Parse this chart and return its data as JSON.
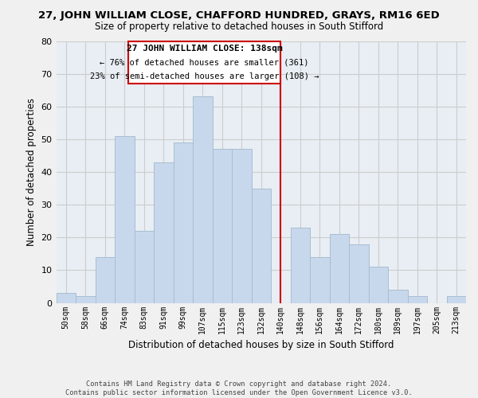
{
  "title": "27, JOHN WILLIAM CLOSE, CHAFFORD HUNDRED, GRAYS, RM16 6ED",
  "subtitle": "Size of property relative to detached houses in South Stifford",
  "xlabel": "Distribution of detached houses by size in South Stifford",
  "ylabel": "Number of detached properties",
  "bin_labels": [
    "50sqm",
    "58sqm",
    "66sqm",
    "74sqm",
    "83sqm",
    "91sqm",
    "99sqm",
    "107sqm",
    "115sqm",
    "123sqm",
    "132sqm",
    "140sqm",
    "148sqm",
    "156sqm",
    "164sqm",
    "172sqm",
    "180sqm",
    "189sqm",
    "197sqm",
    "205sqm",
    "213sqm"
  ],
  "bar_heights": [
    3,
    2,
    14,
    51,
    22,
    43,
    49,
    63,
    47,
    47,
    35,
    0,
    23,
    14,
    21,
    18,
    11,
    4,
    2,
    0,
    2
  ],
  "bar_color": "#c8d8ec",
  "bar_edge_color": "#a8bdd0",
  "grid_color": "#cccccc",
  "vline_x_idx": 11,
  "vline_color": "#cc0000",
  "annotation_title": "27 JOHN WILLIAM CLOSE: 138sqm",
  "annotation_line1": "← 76% of detached houses are smaller (361)",
  "annotation_line2": "23% of semi-detached houses are larger (108) →",
  "annotation_box_color": "#ffffff",
  "annotation_box_edge": "#cc0000",
  "footer_line1": "Contains HM Land Registry data © Crown copyright and database right 2024.",
  "footer_line2": "Contains public sector information licensed under the Open Government Licence v3.0.",
  "ylim": [
    0,
    80
  ],
  "yticks": [
    0,
    10,
    20,
    30,
    40,
    50,
    60,
    70,
    80
  ],
  "background_color": "#f0f0f0",
  "plot_bg_color": "#e8eef4"
}
